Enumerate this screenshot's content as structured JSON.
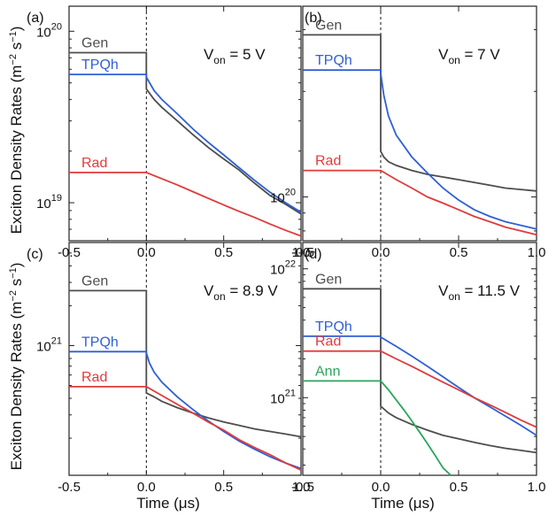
{
  "figure": {
    "ylabel": "Exciton Density Rates (m",
    "ylabel_sup1": "−2",
    "ylabel_mid": " s",
    "ylabel_sup2": "−1",
    "ylabel_end": ")",
    "xlabel": "Time (μs)"
  },
  "chart_data": [
    {
      "type": "line",
      "panel": "(a)",
      "annotation": {
        "prefix": "V",
        "sub": "on",
        "suffix": " = 5 V"
      },
      "xlim": [
        -0.5,
        1.0
      ],
      "ylim": [
        6e+18,
        1.4e+20
      ],
      "yscale": "log",
      "xticks": [
        "-0.5",
        "0.0",
        "0.5",
        "1.0"
      ],
      "xtick_values": [
        -0.5,
        0.0,
        0.5,
        1.0
      ],
      "yticks": [
        {
          "base": "10",
          "exp": "19",
          "value": 1e+19
        },
        {
          "base": "10",
          "exp": "20",
          "value": 1e+20
        }
      ],
      "dashed_line_x": 0.0,
      "series": [
        {
          "name": "Gen",
          "color": "#4d4d4d",
          "x": [
            -0.5,
            0.0,
            0.0,
            0.05,
            0.1,
            0.2,
            0.3,
            0.4,
            0.5,
            0.6,
            0.7,
            0.8,
            0.9,
            1.0
          ],
          "y": [
            7.5e+19,
            7.5e+19,
            4.6e+19,
            4e+19,
            3.6e+19,
            3e+19,
            2.5e+19,
            2.1e+19,
            1.8e+19,
            1.55e+19,
            1.3e+19,
            1.1e+19,
            9.8e+18,
            8.6e+18
          ]
        },
        {
          "name": "TPQh",
          "color": "#2e5fd6",
          "x": [
            -0.5,
            0.0,
            0.0,
            0.05,
            0.1,
            0.2,
            0.3,
            0.4,
            0.5,
            0.6,
            0.7,
            0.8,
            0.9,
            1.0
          ],
          "y": [
            5.6e+19,
            5.6e+19,
            5.4e+19,
            4.5e+19,
            4e+19,
            3.3e+19,
            2.7e+19,
            2.25e+19,
            1.9e+19,
            1.6e+19,
            1.35e+19,
            1.15e+19,
            1e+19,
            8.8e+18
          ]
        },
        {
          "name": "Rad",
          "color": "#e03a3a",
          "x": [
            -0.5,
            0.0,
            0.1,
            0.2,
            0.3,
            0.4,
            0.5,
            0.6,
            0.7,
            0.8,
            0.9,
            1.0
          ],
          "y": [
            1.5e+19,
            1.5e+19,
            1.38e+19,
            1.27e+19,
            1.16e+19,
            1.06e+19,
            9.7e+18,
            8.9e+18,
            8.2e+18,
            7.5e+18,
            6.9e+18,
            6.4e+18
          ]
        }
      ]
    },
    {
      "type": "line",
      "panel": "(b)",
      "annotation": {
        "prefix": "V",
        "sub": "on",
        "suffix": " = 7 V"
      },
      "xlim": [
        -0.5,
        1.0
      ],
      "ylim": [
        7.5e+19,
        3.5e+20
      ],
      "yscale": "log",
      "xticks": [
        "-0.5",
        "0.0",
        "0.5",
        "1.0"
      ],
      "xtick_values": [
        -0.5,
        0.0,
        0.5,
        1.0
      ],
      "yticks": [
        {
          "base": "10",
          "exp": "20",
          "value": 1e+20
        }
      ],
      "dashed_line_x": 0.0,
      "series": [
        {
          "name": "Gen",
          "color": "#4d4d4d",
          "x": [
            -0.5,
            0.0,
            0.0,
            0.02,
            0.05,
            0.1,
            0.2,
            0.3,
            0.4,
            0.5,
            0.6,
            0.7,
            0.8,
            0.9,
            1.0
          ],
          "y": [
            2.9e+20,
            2.9e+20,
            1.35e+20,
            1.3e+20,
            1.26e+20,
            1.23e+20,
            1.19e+20,
            1.16e+20,
            1.14e+20,
            1.12e+20,
            1.1e+20,
            1.08e+20,
            1.06e+20,
            1.05e+20,
            1.04e+20
          ]
        },
        {
          "name": "TPQh",
          "color": "#2e5fd6",
          "x": [
            -0.5,
            0.0,
            0.0,
            0.02,
            0.05,
            0.1,
            0.2,
            0.3,
            0.4,
            0.5,
            0.6,
            0.7,
            0.8,
            0.9,
            1.0
          ],
          "y": [
            2.3e+20,
            2.3e+20,
            2.25e+20,
            1.95e+20,
            1.7e+20,
            1.5e+20,
            1.3e+20,
            1.17e+20,
            1.06e+20,
            9.8e+19,
            9.2e+19,
            8.8e+19,
            8.5e+19,
            8.3e+19,
            8.1e+19
          ]
        },
        {
          "name": "Rad",
          "color": "#e03a3a",
          "x": [
            -0.5,
            0.0,
            0.1,
            0.2,
            0.3,
            0.4,
            0.5,
            0.6,
            0.7,
            0.8,
            0.9,
            1.0
          ],
          "y": [
            1.19e+20,
            1.19e+20,
            1.12e+20,
            1.06e+20,
            1e+20,
            9.6e+19,
            9.2e+19,
            8.8e+19,
            8.5e+19,
            8.2e+19,
            8e+19,
            7.8e+19
          ]
        }
      ]
    },
    {
      "type": "line",
      "panel": "(c)",
      "annotation": {
        "prefix": "V",
        "sub": "on",
        "suffix": " = 8.9 V"
      },
      "xlim": [
        -0.5,
        1.0
      ],
      "ylim": [
        1.05e+20,
        6e+21
      ],
      "yscale": "log",
      "xticks": [
        "-0.5",
        "0.0",
        "0.5",
        "1.0"
      ],
      "xtick_values": [
        -0.5,
        0.0,
        0.5,
        1.0
      ],
      "yticks": [
        {
          "base": "10",
          "exp": "21",
          "value": 1e+21
        }
      ],
      "dashed_line_x": 0.0,
      "series": [
        {
          "name": "Gen",
          "color": "#4d4d4d",
          "x": [
            -0.5,
            0.0,
            0.0,
            0.05,
            0.1,
            0.2,
            0.3,
            0.4,
            0.5,
            0.6,
            0.7,
            0.8,
            0.9,
            1.0
          ],
          "y": [
            2.6e+21,
            2.6e+21,
            4.4e+20,
            4.1e+20,
            3.8e+20,
            3.4e+20,
            3.1e+20,
            2.85e+20,
            2.65e+20,
            2.5e+20,
            2.35e+20,
            2.25e+20,
            2.15e+20,
            2.05e+20
          ]
        },
        {
          "name": "TPQh",
          "color": "#2e5fd6",
          "x": [
            -0.5,
            0.0,
            0.0,
            0.02,
            0.05,
            0.1,
            0.2,
            0.3,
            0.4,
            0.5,
            0.6,
            0.7,
            0.8,
            0.9,
            1.0
          ],
          "y": [
            9e+20,
            9e+20,
            8.8e+20,
            7.4e+20,
            6.3e+20,
            5.3e+20,
            4.1e+20,
            3.3e+20,
            2.7e+20,
            2.25e+20,
            1.9e+20,
            1.65e+20,
            1.45e+20,
            1.3e+20,
            1.18e+20
          ]
        },
        {
          "name": "Rad",
          "color": "#e03a3a",
          "x": [
            -0.5,
            0.0,
            0.1,
            0.2,
            0.3,
            0.4,
            0.5,
            0.6,
            0.7,
            0.8,
            0.9,
            1.0
          ],
          "y": [
            4.9e+20,
            4.9e+20,
            4.2e+20,
            3.6e+20,
            3.1e+20,
            2.65e+20,
            2.3e+20,
            1.95e+20,
            1.7e+20,
            1.5e+20,
            1.3e+20,
            1.15e+20
          ]
        }
      ]
    },
    {
      "type": "line",
      "panel": "(d)",
      "annotation": {
        "prefix": "V",
        "sub": "on",
        "suffix": " = 11.5 V"
      },
      "xlim": [
        -0.5,
        1.0
      ],
      "ylim": [
        2.5e+20,
        1.6e+22
      ],
      "yscale": "log",
      "xticks": [
        "-0.5",
        "0.0",
        "0.5",
        "1.0"
      ],
      "xtick_values": [
        -0.5,
        0.0,
        0.5,
        1.0
      ],
      "yticks": [
        {
          "base": "10",
          "exp": "21",
          "value": 1e+21
        },
        {
          "base": "10",
          "exp": "22",
          "value": 1e+22
        }
      ],
      "dashed_line_x": 0.0,
      "series": [
        {
          "name": "Gen",
          "color": "#4d4d4d",
          "x": [
            -0.5,
            0.0,
            0.0,
            0.05,
            0.1,
            0.2,
            0.3,
            0.4,
            0.5,
            0.6,
            0.7,
            0.8,
            0.9,
            1.0
          ],
          "y": [
            7e+21,
            7e+21,
            8.6e+20,
            7.6e+20,
            7e+20,
            6.2e+20,
            5.6e+20,
            5.1e+20,
            4.8e+20,
            4.5e+20,
            4.25e+20,
            4.05e+20,
            3.9e+20,
            3.75e+20
          ]
        },
        {
          "name": "TPQh",
          "color": "#2e5fd6",
          "x": [
            -0.5,
            0.0,
            0.0,
            0.1,
            0.2,
            0.3,
            0.4,
            0.5,
            0.6,
            0.7,
            0.8,
            0.9,
            1.0
          ],
          "y": [
            3e+21,
            3e+21,
            2.95e+21,
            2.5e+21,
            2.1e+21,
            1.75e+21,
            1.45e+21,
            1.2e+21,
            1e+21,
            8.5e+20,
            7.2e+20,
            6.1e+20,
            5.1e+20
          ]
        },
        {
          "name": "Rad",
          "color": "#e03a3a",
          "x": [
            -0.5,
            0.0,
            0.1,
            0.2,
            0.3,
            0.4,
            0.5,
            0.6,
            0.7,
            0.8,
            0.9,
            1.0
          ],
          "y": [
            2.3e+21,
            2.3e+21,
            2e+21,
            1.75e+21,
            1.52e+21,
            1.32e+21,
            1.15e+21,
            1e+21,
            8.8e+20,
            7.7e+20,
            6.7e+20,
            5.9e+20
          ]
        },
        {
          "name": "Ann",
          "color": "#2aa55a",
          "x": [
            -0.5,
            0.0,
            0.05,
            0.1,
            0.15,
            0.2,
            0.25,
            0.3,
            0.35,
            0.4,
            0.45
          ],
          "y": [
            1.35e+21,
            1.35e+21,
            1.15e+21,
            9.6e+20,
            8e+20,
            6.6e+20,
            5.4e+20,
            4.4e+20,
            3.55e+20,
            2.85e+20,
            2.3e+20
          ]
        }
      ]
    }
  ]
}
